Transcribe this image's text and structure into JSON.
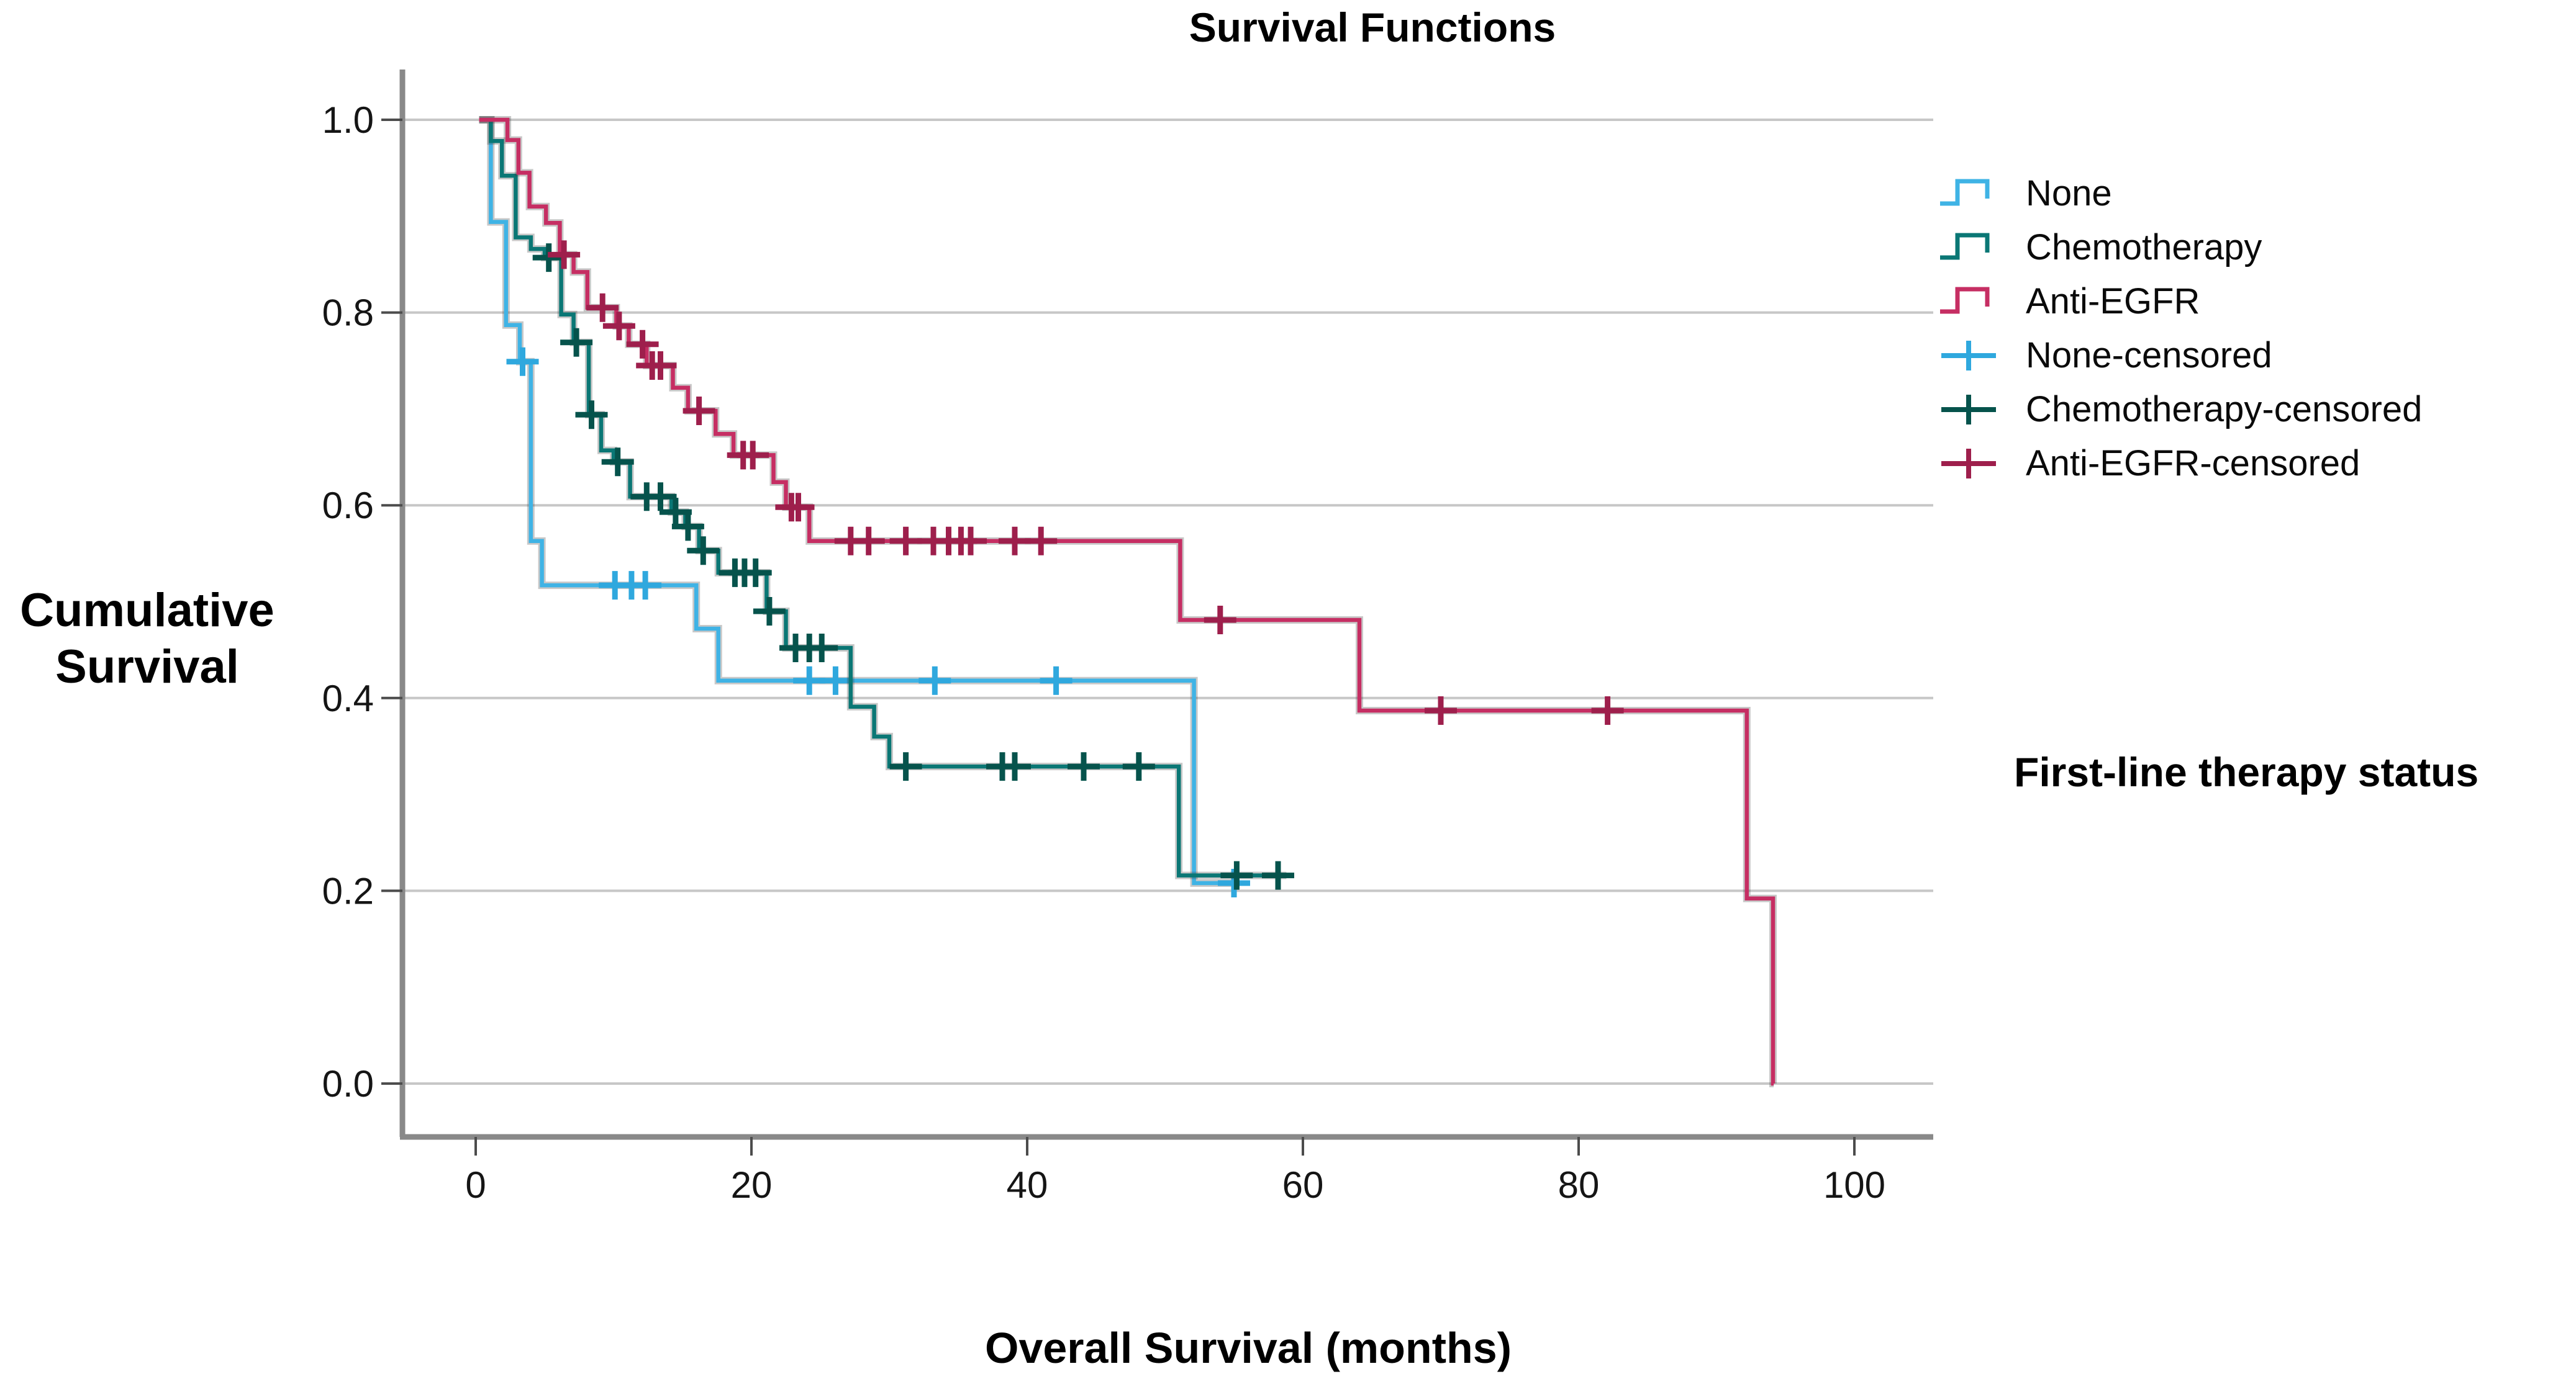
{
  "title": "Survival Functions",
  "y_axis": {
    "title": "Cumulative Survival",
    "ticks": [
      {
        "v": 1.0,
        "label": "1.0"
      },
      {
        "v": 0.8,
        "label": "0.8"
      },
      {
        "v": 0.6,
        "label": "0.6"
      },
      {
        "v": 0.4,
        "label": "0.4"
      },
      {
        "v": 0.2,
        "label": "0.2"
      },
      {
        "v": 0.0,
        "label": "0.0"
      }
    ]
  },
  "x_axis": {
    "title": "Overall Survival (months)",
    "ticks": [
      {
        "v": 0,
        "label": "0"
      },
      {
        "v": 20,
        "label": "20"
      },
      {
        "v": 40,
        "label": "40"
      },
      {
        "v": 60,
        "label": "60"
      },
      {
        "v": 80,
        "label": "80"
      },
      {
        "v": 100,
        "label": "100"
      }
    ]
  },
  "right_label": "First-line therapy status",
  "colors": {
    "none": "#3FB3E5",
    "chemotherapy": "#0A7775",
    "anti_egfr": "#C62E63",
    "gridline": "#C7C7C7",
    "axis": "#898989",
    "tick": "#4C4C4C",
    "text": "#151515"
  },
  "legend": {
    "items": [
      {
        "label": "None",
        "symbol": "step",
        "color": "#3FB3E5"
      },
      {
        "label": "Chemotherapy",
        "symbol": "step",
        "color": "#0A7775"
      },
      {
        "label": "Anti-EGFR",
        "symbol": "step",
        "color": "#C62E63"
      },
      {
        "label": "None-censored",
        "symbol": "plus",
        "color": "#2FA8DE"
      },
      {
        "label": "Chemotherapy-censored",
        "symbol": "plus",
        "color": "#06534C"
      },
      {
        "label": "Anti-EGFR-censored",
        "symbol": "plus",
        "color": "#9E1F4C"
      }
    ]
  },
  "chart_data": {
    "type": "line",
    "subtype": "kaplan-meier-step",
    "title": "Survival Functions",
    "xlabel": "Overall Survival (months)",
    "ylabel": "Cumulative Survival",
    "xlim": [
      -5,
      106
    ],
    "ylim": [
      0.0,
      1.0
    ],
    "x_tick_values": [
      0,
      20,
      40,
      60,
      80,
      100
    ],
    "y_tick_values": [
      0.0,
      0.2,
      0.4,
      0.6,
      0.8,
      1.0
    ],
    "grid": "horizontal",
    "legend_position": "right",
    "series": [
      {
        "name": "None",
        "color": "#3FB3E5",
        "censor_color": "#2FA8DE",
        "end": 55.4,
        "steps": [
          [
            0.25,
            1.0
          ],
          [
            1.1,
            0.894
          ],
          [
            2.2,
            0.787
          ],
          [
            3.2,
            0.749
          ],
          [
            4.0,
            0.563
          ],
          [
            4.8,
            0.517
          ],
          [
            16.0,
            0.472
          ],
          [
            17.6,
            0.418
          ],
          [
            52.1,
            0.208
          ]
        ],
        "censored": [
          [
            3.4,
            0.749
          ],
          [
            10.1,
            0.517
          ],
          [
            11.3,
            0.517
          ],
          [
            12.3,
            0.517
          ],
          [
            24.2,
            0.418
          ],
          [
            26.1,
            0.418
          ],
          [
            33.3,
            0.418
          ],
          [
            42.1,
            0.418
          ],
          [
            55.0,
            0.208
          ]
        ]
      },
      {
        "name": "Chemotherapy",
        "color": "#0A7775",
        "censor_color": "#06534C",
        "end": 58.8,
        "steps": [
          [
            0.25,
            1.0
          ],
          [
            1.1,
            0.978
          ],
          [
            1.9,
            0.942
          ],
          [
            2.9,
            0.878
          ],
          [
            4.0,
            0.866
          ],
          [
            5.0,
            0.857
          ],
          [
            6.2,
            0.798
          ],
          [
            7.1,
            0.769
          ],
          [
            8.2,
            0.694
          ],
          [
            9.1,
            0.657
          ],
          [
            10.0,
            0.645
          ],
          [
            11.2,
            0.609
          ],
          [
            14.2,
            0.593
          ],
          [
            15.2,
            0.578
          ],
          [
            16.2,
            0.553
          ],
          [
            17.6,
            0.53
          ],
          [
            21.1,
            0.49
          ],
          [
            22.5,
            0.452
          ],
          [
            27.2,
            0.391
          ],
          [
            28.9,
            0.36
          ],
          [
            30.0,
            0.329
          ],
          [
            51.0,
            0.216
          ]
        ],
        "censored": [
          [
            5.3,
            0.857
          ],
          [
            7.3,
            0.769
          ],
          [
            8.4,
            0.694
          ],
          [
            10.3,
            0.645
          ],
          [
            12.4,
            0.609
          ],
          [
            13.4,
            0.609
          ],
          [
            14.5,
            0.593
          ],
          [
            15.4,
            0.578
          ],
          [
            16.5,
            0.553
          ],
          [
            18.8,
            0.53
          ],
          [
            19.5,
            0.53
          ],
          [
            20.3,
            0.53
          ],
          [
            21.3,
            0.49
          ],
          [
            23.2,
            0.452
          ],
          [
            24.2,
            0.452
          ],
          [
            25.1,
            0.452
          ],
          [
            31.2,
            0.329
          ],
          [
            38.2,
            0.329
          ],
          [
            39.1,
            0.329
          ],
          [
            44.1,
            0.329
          ],
          [
            48.1,
            0.329
          ],
          [
            55.2,
            0.216
          ],
          [
            58.2,
            0.216
          ]
        ]
      },
      {
        "name": "Anti-EGFR",
        "color": "#C62E63",
        "censor_color": "#9E1F4C",
        "end": 94.15,
        "steps": [
          [
            0.25,
            1.0
          ],
          [
            2.3,
            0.979
          ],
          [
            3.1,
            0.945
          ],
          [
            3.9,
            0.91
          ],
          [
            5.1,
            0.893
          ],
          [
            6.1,
            0.86
          ],
          [
            7.1,
            0.842
          ],
          [
            8.1,
            0.805
          ],
          [
            10.2,
            0.786
          ],
          [
            11.1,
            0.767
          ],
          [
            12.4,
            0.745
          ],
          [
            14.3,
            0.722
          ],
          [
            15.4,
            0.698
          ],
          [
            17.4,
            0.674
          ],
          [
            18.7,
            0.652
          ],
          [
            21.6,
            0.624
          ],
          [
            22.5,
            0.598
          ],
          [
            24.2,
            0.563
          ],
          [
            51.1,
            0.481
          ],
          [
            64.1,
            0.387
          ],
          [
            92.2,
            0.192
          ],
          [
            94.1,
            0.0
          ]
        ],
        "censored": [
          [
            6.4,
            0.86
          ],
          [
            9.2,
            0.805
          ],
          [
            10.4,
            0.786
          ],
          [
            12.1,
            0.767
          ],
          [
            12.8,
            0.745
          ],
          [
            13.4,
            0.745
          ],
          [
            16.2,
            0.698
          ],
          [
            19.4,
            0.652
          ],
          [
            20.1,
            0.652
          ],
          [
            22.9,
            0.598
          ],
          [
            23.4,
            0.598
          ],
          [
            27.2,
            0.563
          ],
          [
            28.5,
            0.563
          ],
          [
            31.2,
            0.563
          ],
          [
            33.2,
            0.563
          ],
          [
            34.3,
            0.563
          ],
          [
            35.2,
            0.563
          ],
          [
            35.9,
            0.563
          ],
          [
            39.1,
            0.563
          ],
          [
            41.0,
            0.563
          ],
          [
            54.0,
            0.481
          ],
          [
            70.0,
            0.387
          ],
          [
            82.1,
            0.387
          ]
        ]
      }
    ]
  }
}
